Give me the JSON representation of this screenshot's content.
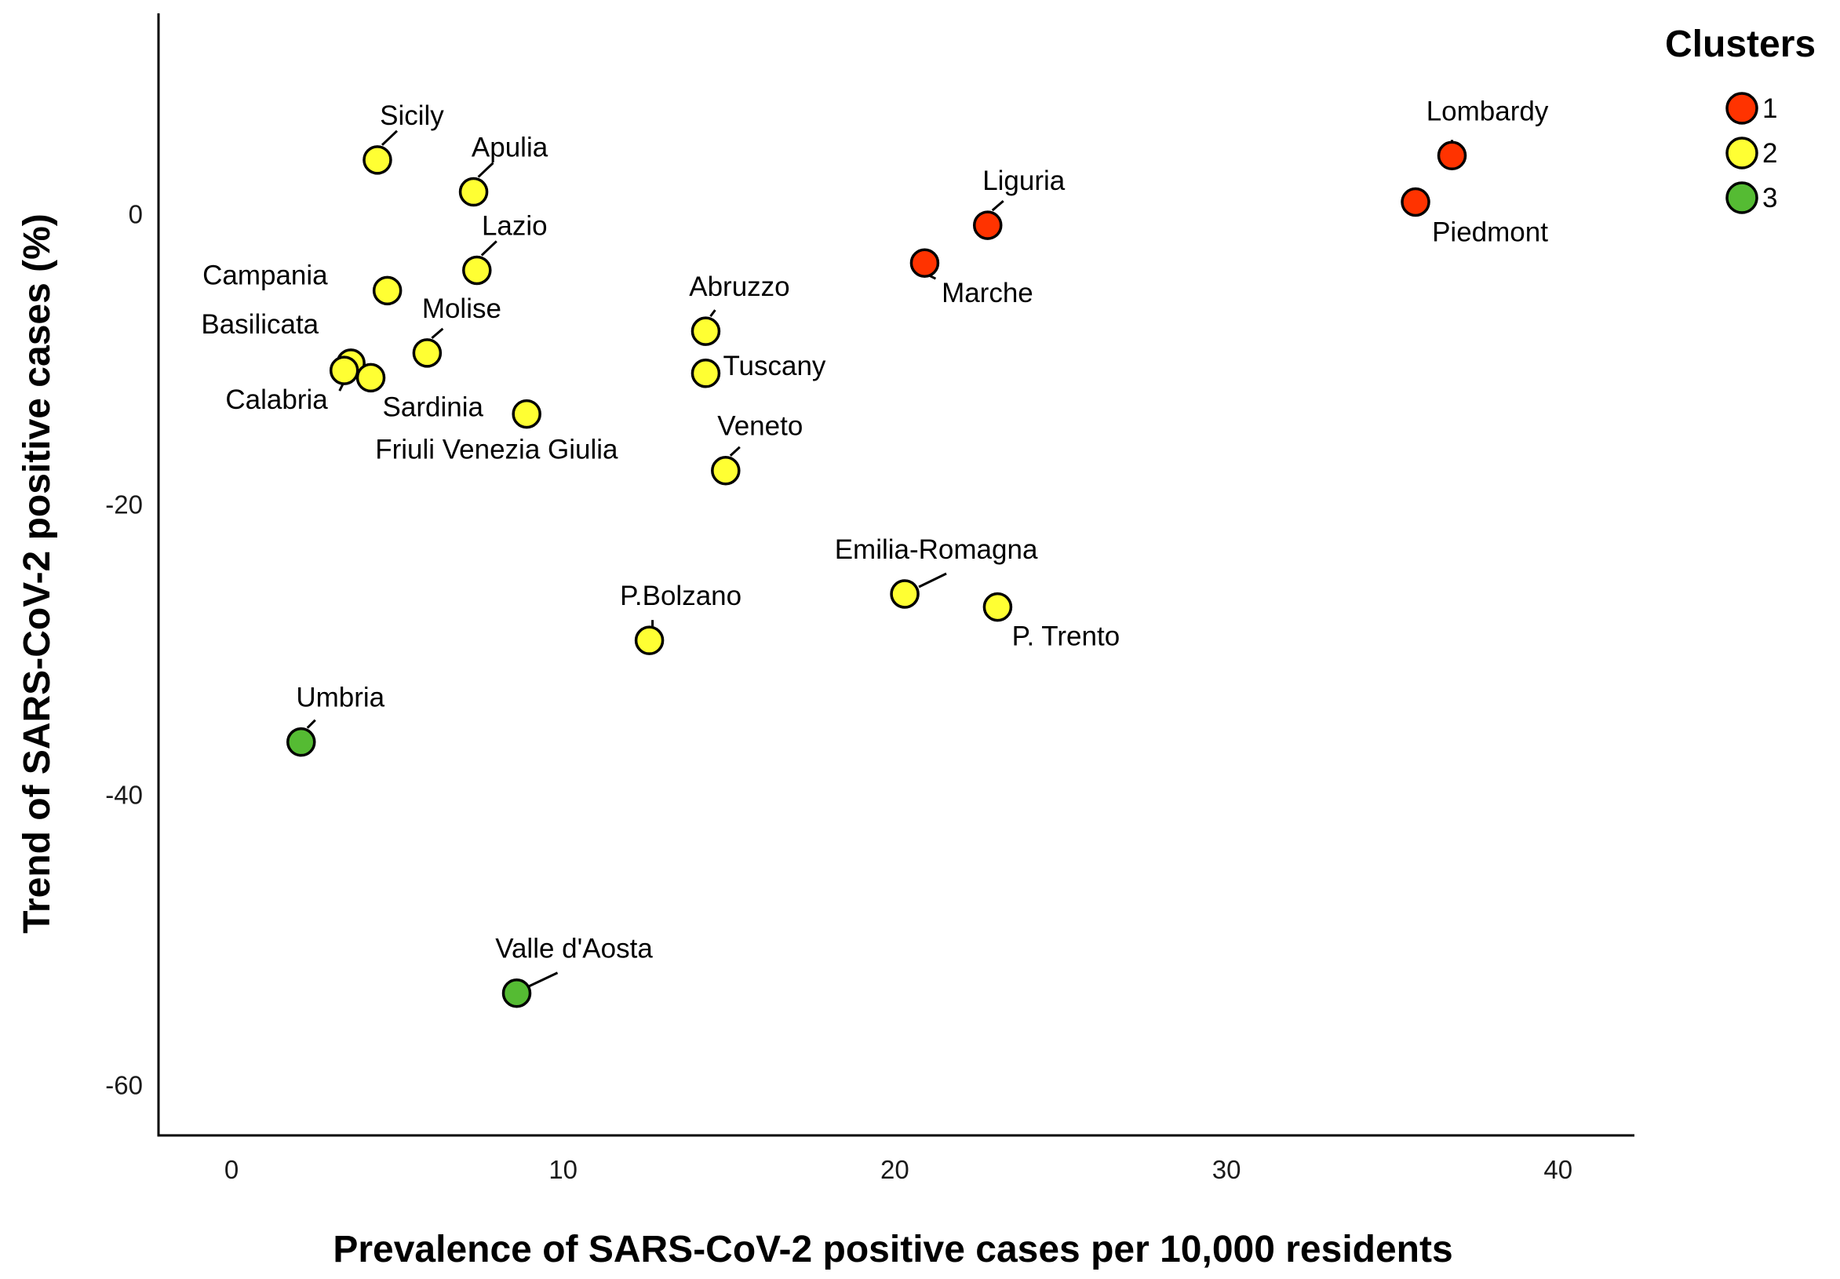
{
  "chart_data": {
    "type": "scatter",
    "xlabel": "Prevalence of SARS-CoV-2 positive cases per 10,000 residents",
    "ylabel": "Trend of SARS-CoV-2 positive cases (%)",
    "xlim": [
      -2.2,
      42.3
    ],
    "ylim": [
      -63.5,
      13.8
    ],
    "xticks": [
      0,
      10,
      20,
      30,
      40
    ],
    "yticks": [
      0,
      -20,
      -40,
      -60
    ],
    "grid": false,
    "legend": {
      "title": "Clusters",
      "position": "top-right",
      "entries": [
        {
          "label": "1",
          "cluster": 1
        },
        {
          "label": "2",
          "cluster": 2
        },
        {
          "label": "3",
          "cluster": 3
        }
      ]
    },
    "cluster_colors": {
      "1": "#ff3300",
      "2": "#ffff33",
      "3": "#55bb33"
    },
    "points": [
      {
        "name": "Lombardy",
        "x": 36.8,
        "y": 4.0,
        "cluster": 1
      },
      {
        "name": "Piedmont",
        "x": 35.7,
        "y": 0.8,
        "cluster": 1
      },
      {
        "name": "Liguria",
        "x": 22.8,
        "y": -0.8,
        "cluster": 1
      },
      {
        "name": "Marche",
        "x": 20.9,
        "y": -3.4,
        "cluster": 1
      },
      {
        "name": "Sicily",
        "x": 4.4,
        "y": 3.7,
        "cluster": 2
      },
      {
        "name": "Apulia",
        "x": 7.3,
        "y": 1.5,
        "cluster": 2
      },
      {
        "name": "Lazio",
        "x": 7.4,
        "y": -3.9,
        "cluster": 2
      },
      {
        "name": "Campania",
        "x": 4.7,
        "y": -5.3,
        "cluster": 2
      },
      {
        "name": "Molise",
        "x": 5.9,
        "y": -9.6,
        "cluster": 2
      },
      {
        "name": "Basilicata",
        "x": 3.6,
        "y": -10.3,
        "cluster": 2
      },
      {
        "name": "Calabria",
        "x": 3.4,
        "y": -10.8,
        "cluster": 2
      },
      {
        "name": "Sardinia",
        "x": 4.2,
        "y": -11.3,
        "cluster": 2
      },
      {
        "name": "Friuli Venezia Giulia",
        "x": 8.9,
        "y": -13.8,
        "cluster": 2
      },
      {
        "name": "Abruzzo",
        "x": 14.3,
        "y": -8.1,
        "cluster": 2
      },
      {
        "name": "Tuscany",
        "x": 14.3,
        "y": -11.0,
        "cluster": 2
      },
      {
        "name": "Veneto",
        "x": 14.9,
        "y": -17.7,
        "cluster": 2
      },
      {
        "name": "Emilia-Romagna",
        "x": 20.3,
        "y": -26.2,
        "cluster": 2
      },
      {
        "name": "P. Trento",
        "x": 23.1,
        "y": -27.1,
        "cluster": 2
      },
      {
        "name": "P.Bolzano",
        "x": 12.6,
        "y": -29.4,
        "cluster": 2
      },
      {
        "name": "Umbria",
        "x": 2.1,
        "y": -36.4,
        "cluster": 3
      },
      {
        "name": "Valle d'Aosta",
        "x": 8.6,
        "y": -53.7,
        "cluster": 3
      }
    ]
  }
}
